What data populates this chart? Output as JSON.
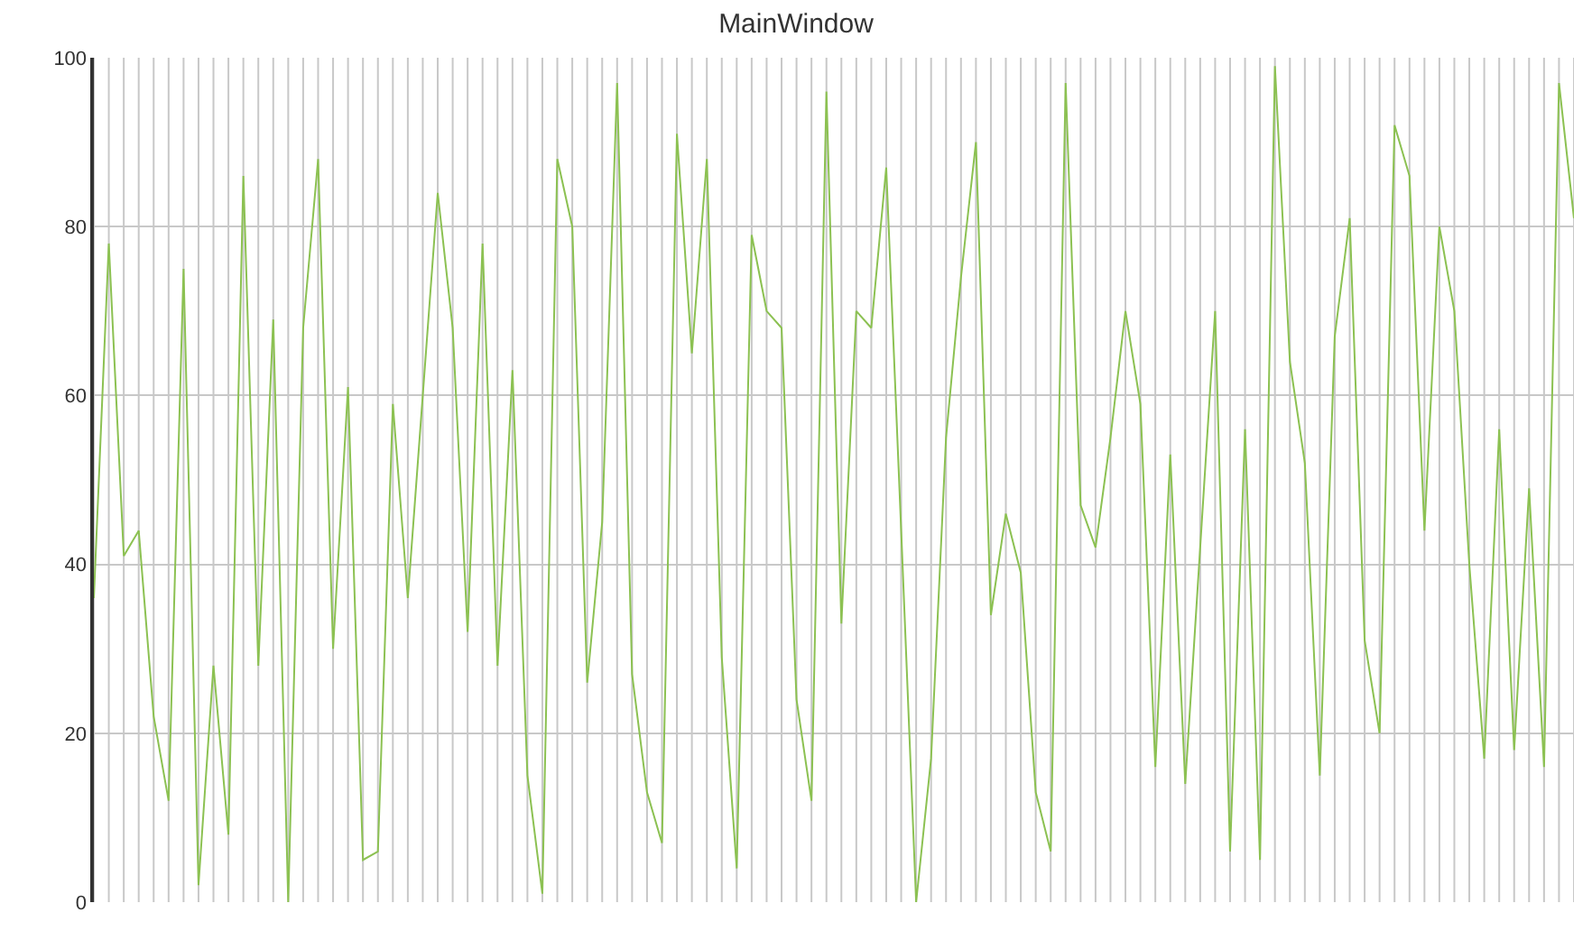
{
  "chart_data": {
    "type": "line",
    "title": "MainWindow",
    "categories": [
      null,
      null,
      null,
      null,
      null,
      null,
      null,
      null,
      null,
      null,
      null,
      null,
      null,
      null,
      null,
      null,
      null,
      null,
      null,
      null,
      null,
      null,
      null,
      null,
      null,
      null,
      null,
      null,
      null,
      null,
      null,
      null,
      null,
      null,
      null,
      null,
      null,
      null,
      null,
      null,
      null,
      null,
      null,
      null,
      null,
      null,
      null,
      null,
      null,
      null,
      null,
      null,
      null,
      null,
      null,
      null,
      null,
      null,
      null,
      null,
      null,
      null,
      null,
      null,
      null,
      null,
      null,
      null,
      null,
      null,
      null,
      null,
      null,
      null,
      null,
      null,
      null,
      null,
      null,
      null,
      null,
      null,
      null,
      null,
      null,
      null,
      null,
      null,
      null,
      null,
      null,
      null,
      null,
      null,
      null,
      null,
      null,
      null,
      null,
      null
    ],
    "series": [
      {
        "color": "#8cc152",
        "values": [
          36,
          78,
          41,
          44,
          22,
          12,
          75,
          2,
          28,
          8,
          86,
          28,
          69,
          0,
          68,
          88,
          30,
          61,
          5,
          6,
          59,
          36,
          60,
          84,
          68,
          32,
          78,
          28,
          63,
          15,
          1,
          88,
          80,
          26,
          45,
          97,
          27,
          13,
          7,
          91,
          65,
          88,
          29,
          4,
          79,
          70,
          68,
          24,
          12,
          96,
          33,
          70,
          68,
          87,
          44,
          0,
          17,
          55,
          74,
          90,
          34,
          46,
          39,
          13,
          6,
          97,
          47,
          42,
          55,
          70,
          59,
          16,
          53,
          14,
          42,
          70,
          6,
          56,
          5,
          99,
          64,
          52,
          15,
          67,
          81,
          31,
          20,
          92,
          86,
          44,
          80,
          70,
          40,
          17,
          56,
          18,
          49,
          16,
          97,
          81
        ]
      }
    ],
    "ylim": [
      0,
      100
    ],
    "yticks": [
      0,
      20,
      40,
      60,
      80,
      100
    ],
    "grid": true,
    "tick_labels": "y",
    "marker": "none",
    "line_style": "solid"
  }
}
